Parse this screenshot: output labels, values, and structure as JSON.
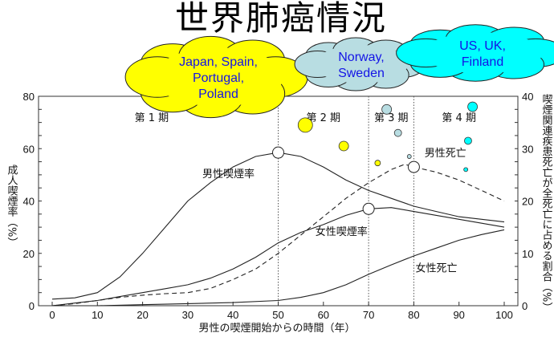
{
  "title": "世界肺癌情況",
  "chart_data": {
    "type": "line",
    "xlabel": "男性の喫煙開始からの時間（年）",
    "ylabel": "成人喫煙率（%）",
    "ylabel_right": "喫煙関連疾患死亡が全死亡に占める割合（%）",
    "xlim": [
      0,
      100
    ],
    "ylim": [
      0,
      80
    ],
    "ylim_right": [
      0,
      40
    ],
    "x_ticks": [
      "0",
      "10",
      "20",
      "30",
      "40",
      "50",
      "60",
      "70",
      "80",
      "90",
      "100"
    ],
    "y_ticks": [
      "0",
      "20",
      "40",
      "60",
      "80"
    ],
    "y_ticks_right": [
      "0",
      "10",
      "20",
      "30",
      "40"
    ],
    "phase_lines": [
      50,
      70,
      80
    ],
    "phases": [
      {
        "label": "第 1 期",
        "x": 22
      },
      {
        "label": "第 2 期",
        "x": 60
      },
      {
        "label": "第 3 期",
        "x": 75
      },
      {
        "label": "第 4 期",
        "x": 90
      }
    ],
    "series": [
      {
        "name": "男性喫煙率",
        "axis": "left",
        "dash": false,
        "label_pos": [
          39,
          49
        ],
        "marker": [
          50,
          58.5
        ],
        "x": [
          0,
          5,
          10,
          15,
          20,
          25,
          30,
          35,
          40,
          45,
          50,
          55,
          60,
          65,
          70,
          75,
          80,
          85,
          90,
          95,
          100
        ],
        "y": [
          2.5,
          3,
          5,
          11,
          20,
          30,
          40,
          47,
          53,
          57,
          58.5,
          57,
          53,
          48,
          44,
          41,
          38,
          36,
          34,
          33,
          32
        ]
      },
      {
        "name": "女性喫煙率",
        "axis": "left",
        "dash": false,
        "label_pos": [
          64,
          27
        ],
        "marker": [
          70,
          37
        ],
        "x": [
          0,
          5,
          10,
          15,
          20,
          25,
          30,
          35,
          40,
          45,
          50,
          55,
          60,
          65,
          70,
          75,
          80,
          85,
          90,
          95,
          100
        ],
        "y": [
          0,
          1,
          2,
          3.5,
          5,
          6.5,
          8,
          10.5,
          14,
          18.5,
          24,
          28,
          31,
          34.5,
          37,
          37.5,
          36,
          34.5,
          33,
          31.5,
          30
        ]
      },
      {
        "name": "男性死亡",
        "axis": "right",
        "dash": true,
        "label_pos": [
          87,
          28.5
        ],
        "marker": [
          80,
          26.5
        ],
        "x": [
          0,
          5,
          10,
          15,
          20,
          25,
          30,
          35,
          40,
          45,
          50,
          55,
          60,
          65,
          70,
          75,
          78,
          80,
          85,
          90,
          95,
          100
        ],
        "y": [
          0,
          0.4,
          1,
          1.6,
          2,
          2.3,
          2.5,
          3.3,
          5,
          7,
          10,
          13.5,
          17,
          20.5,
          23.5,
          26,
          27,
          26.5,
          25.5,
          24,
          22,
          20
        ]
      },
      {
        "name": "女性死亡",
        "axis": "right",
        "dash": false,
        "label_pos": [
          85,
          6.5
        ],
        "marker": null,
        "x": [
          0,
          10,
          20,
          30,
          40,
          50,
          55,
          60,
          65,
          70,
          75,
          80,
          85,
          90,
          95,
          100
        ],
        "y": [
          0,
          0,
          0.2,
          0.4,
          0.6,
          1,
          1.6,
          2.5,
          4,
          6,
          7.8,
          9.5,
          11,
          12.5,
          13.6,
          14.5
        ]
      }
    ],
    "country_bubbles": [
      {
        "group": "Japan, Spain, Portugal, Poland",
        "color": "#ffff00",
        "points": [
          [
            56,
            69,
            9
          ],
          [
            64.5,
            61,
            6
          ],
          [
            72,
            54.5,
            3.5
          ]
        ]
      },
      {
        "group": "Norway, Sweden",
        "color": "#b8dde2",
        "points": [
          [
            74,
            75,
            6
          ],
          [
            76.5,
            66,
            4.5
          ],
          [
            79,
            57,
            2.5
          ]
        ]
      },
      {
        "group": "US, UK, Finland",
        "color": "#00ffff",
        "points": [
          [
            93,
            76,
            6
          ],
          [
            92,
            63,
            4.5
          ],
          [
            91.5,
            52,
            2.5
          ]
        ]
      }
    ]
  },
  "clouds": [
    {
      "lines": [
        "Japan, Spain,",
        "Portugal,",
        "Poland"
      ],
      "color": "#ffff00"
    },
    {
      "lines": [
        "Norway,",
        "Sweden"
      ],
      "color": "#b8dde2"
    },
    {
      "lines": [
        "US, UK,",
        "Finland"
      ],
      "color": "#00ffff"
    }
  ]
}
